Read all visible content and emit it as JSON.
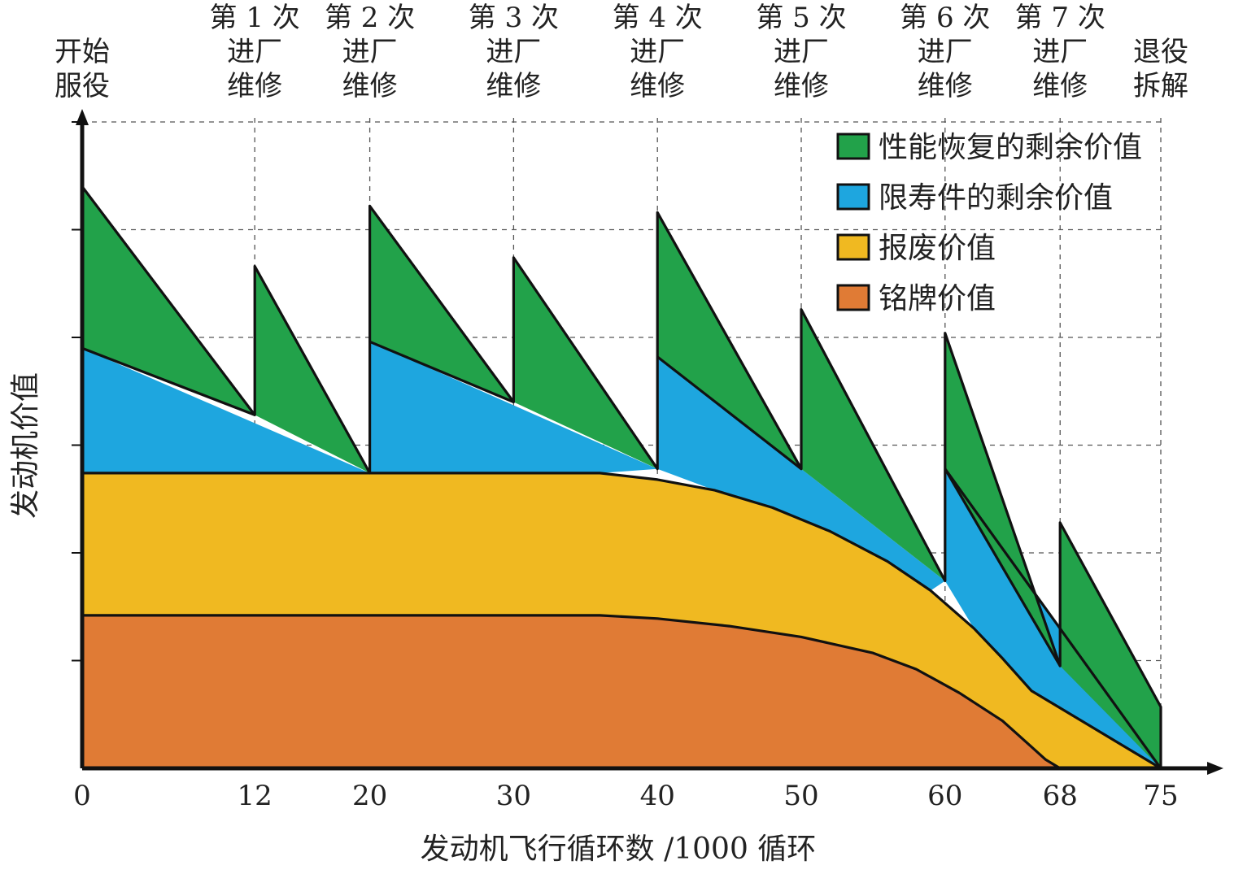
{
  "chart_data": {
    "type": "area",
    "xlabel": "发动机飞行循环数 /1000 循环",
    "ylabel": "发动机价值",
    "xlim": [
      0,
      76
    ],
    "ylim": [
      0,
      6
    ],
    "grid": true,
    "legend_position": "top-right",
    "x_ticks": [
      0,
      12,
      20,
      30,
      40,
      50,
      60,
      68,
      75
    ],
    "events": [
      {
        "x": 0,
        "lines": [
          "开始",
          "服役"
        ]
      },
      {
        "x": 12,
        "lines": [
          "第 1 次",
          "进厂",
          "维修"
        ]
      },
      {
        "x": 20,
        "lines": [
          "第 2 次",
          "进厂",
          "维修"
        ]
      },
      {
        "x": 30,
        "lines": [
          "第 3 次",
          "进厂",
          "维修"
        ]
      },
      {
        "x": 40,
        "lines": [
          "第 4 次",
          "进厂",
          "维修"
        ]
      },
      {
        "x": 50,
        "lines": [
          "第 5 次",
          "进厂",
          "维修"
        ]
      },
      {
        "x": 60,
        "lines": [
          "第 6 次",
          "进厂",
          "维修"
        ]
      },
      {
        "x": 68,
        "lines": [
          "第 7 次",
          "进厂",
          "维修"
        ]
      },
      {
        "x": 75,
        "lines": [
          "退役",
          "拆解"
        ]
      }
    ],
    "series": [
      {
        "name": "铭牌价值",
        "color": "#e07b35",
        "upper": [
          [
            0,
            1.42
          ],
          [
            36,
            1.42
          ],
          [
            40,
            1.39
          ],
          [
            45,
            1.32
          ],
          [
            50,
            1.22
          ],
          [
            55,
            1.07
          ],
          [
            58,
            0.92
          ],
          [
            61,
            0.7
          ],
          [
            64,
            0.44
          ],
          [
            67,
            0.08
          ],
          [
            68,
            0
          ]
        ],
        "lower": [
          [
            0,
            0
          ],
          [
            68,
            0
          ]
        ]
      },
      {
        "name": "报废价值",
        "color": "#f0b921",
        "upper": [
          [
            0,
            2.74
          ],
          [
            36,
            2.74
          ],
          [
            40,
            2.68
          ],
          [
            44,
            2.58
          ],
          [
            48,
            2.42
          ],
          [
            52,
            2.2
          ],
          [
            56,
            1.92
          ],
          [
            59,
            1.65
          ],
          [
            62,
            1.3
          ],
          [
            64,
            1.02
          ],
          [
            66,
            0.72
          ],
          [
            72,
            0.24
          ],
          [
            75,
            0
          ]
        ],
        "lower": [
          [
            0,
            1.42
          ],
          [
            36,
            1.42
          ],
          [
            40,
            1.39
          ],
          [
            45,
            1.32
          ],
          [
            50,
            1.22
          ],
          [
            55,
            1.07
          ],
          [
            58,
            0.92
          ],
          [
            61,
            0.7
          ],
          [
            64,
            0.44
          ],
          [
            67,
            0.08
          ],
          [
            68,
            0
          ],
          [
            75,
            0
          ]
        ]
      },
      {
        "name": "限寿件的剩余价值",
        "color": "#1ea6df",
        "pieces": [
          [
            [
              0,
              2.74
            ],
            [
              0,
              3.9
            ],
            [
              20,
              2.74
            ]
          ],
          [
            [
              20,
              2.74
            ],
            [
              20,
              3.96
            ],
            [
              40,
              2.78
            ],
            [
              36,
              2.74
            ]
          ],
          [
            [
              40,
              2.78
            ],
            [
              40,
              3.82
            ],
            [
              60,
              1.74
            ],
            [
              59,
              1.65
            ],
            [
              56,
              1.92
            ],
            [
              52,
              2.2
            ],
            [
              48,
              2.42
            ],
            [
              44,
              2.58
            ]
          ],
          [
            [
              60,
              1.74
            ],
            [
              60,
              2.78
            ],
            [
              75,
              0
            ],
            [
              72,
              0.24
            ],
            [
              66,
              0.72
            ],
            [
              64,
              1.02
            ],
            [
              62,
              1.3
            ]
          ]
        ]
      },
      {
        "name": "性能恢复的剩余价值",
        "color": "#22a24a",
        "pieces": [
          [
            [
              0,
              3.9
            ],
            [
              0,
              5.4
            ],
            [
              12,
              3.28
            ],
            [
              0,
              3.9
            ]
          ],
          [
            [
              12,
              3.28
            ],
            [
              12,
              4.66
            ],
            [
              20,
              2.74
            ]
          ],
          [
            [
              20,
              3.96
            ],
            [
              20,
              5.22
            ],
            [
              30,
              3.4
            ],
            [
              20,
              3.96
            ]
          ],
          [
            [
              30,
              3.4
            ],
            [
              30,
              4.74
            ],
            [
              40,
              2.78
            ]
          ],
          [
            [
              40,
              3.82
            ],
            [
              40,
              5.16
            ],
            [
              50,
              2.78
            ],
            [
              40,
              3.82
            ]
          ],
          [
            [
              50,
              2.78
            ],
            [
              50,
              4.26
            ],
            [
              60,
              1.74
            ]
          ],
          [
            [
              60,
              2.78
            ],
            [
              60,
              4.04
            ],
            [
              68,
              0.95
            ],
            [
              60,
              2.78
            ]
          ],
          [
            [
              68,
              0.95
            ],
            [
              68,
              2.28
            ],
            [
              75,
              0.57
            ],
            [
              75,
              0
            ]
          ]
        ]
      }
    ],
    "edges": [
      [
        [
          0,
          5.4
        ],
        [
          12,
          3.28
        ],
        [
          12,
          4.66
        ],
        [
          20,
          2.74
        ],
        [
          20,
          5.22
        ],
        [
          30,
          3.4
        ],
        [
          30,
          4.74
        ],
        [
          40,
          2.78
        ],
        [
          40,
          5.16
        ],
        [
          50,
          2.78
        ],
        [
          50,
          4.26
        ],
        [
          60,
          1.74
        ],
        [
          60,
          4.04
        ],
        [
          68,
          0.95
        ],
        [
          68,
          2.28
        ],
        [
          75,
          0.57
        ],
        [
          75,
          0
        ]
      ],
      [
        [
          0,
          3.9
        ],
        [
          12,
          3.28
        ]
      ],
      [
        [
          20,
          3.96
        ],
        [
          30,
          3.4
        ]
      ],
      [
        [
          40,
          3.82
        ],
        [
          50,
          2.78
        ]
      ],
      [
        [
          60,
          2.78
        ],
        [
          68,
          0.95
        ]
      ],
      [
        [
          60,
          2.78
        ],
        [
          75,
          0
        ]
      ],
      [
        [
          0,
          2.74
        ],
        [
          36,
          2.74
        ],
        [
          40,
          2.68
        ],
        [
          44,
          2.58
        ],
        [
          48,
          2.42
        ],
        [
          52,
          2.2
        ],
        [
          56,
          1.92
        ],
        [
          59,
          1.65
        ],
        [
          62,
          1.3
        ],
        [
          64,
          1.02
        ],
        [
          66,
          0.72
        ],
        [
          72,
          0.24
        ],
        [
          75,
          0
        ]
      ],
      [
        [
          0,
          1.42
        ],
        [
          36,
          1.42
        ],
        [
          40,
          1.39
        ],
        [
          45,
          1.32
        ],
        [
          50,
          1.22
        ],
        [
          55,
          1.07
        ],
        [
          58,
          0.92
        ],
        [
          61,
          0.7
        ],
        [
          64,
          0.44
        ],
        [
          67,
          0.08
        ],
        [
          68,
          0
        ]
      ],
      [
        [
          0,
          0
        ],
        [
          0,
          5.4
        ]
      ]
    ]
  }
}
